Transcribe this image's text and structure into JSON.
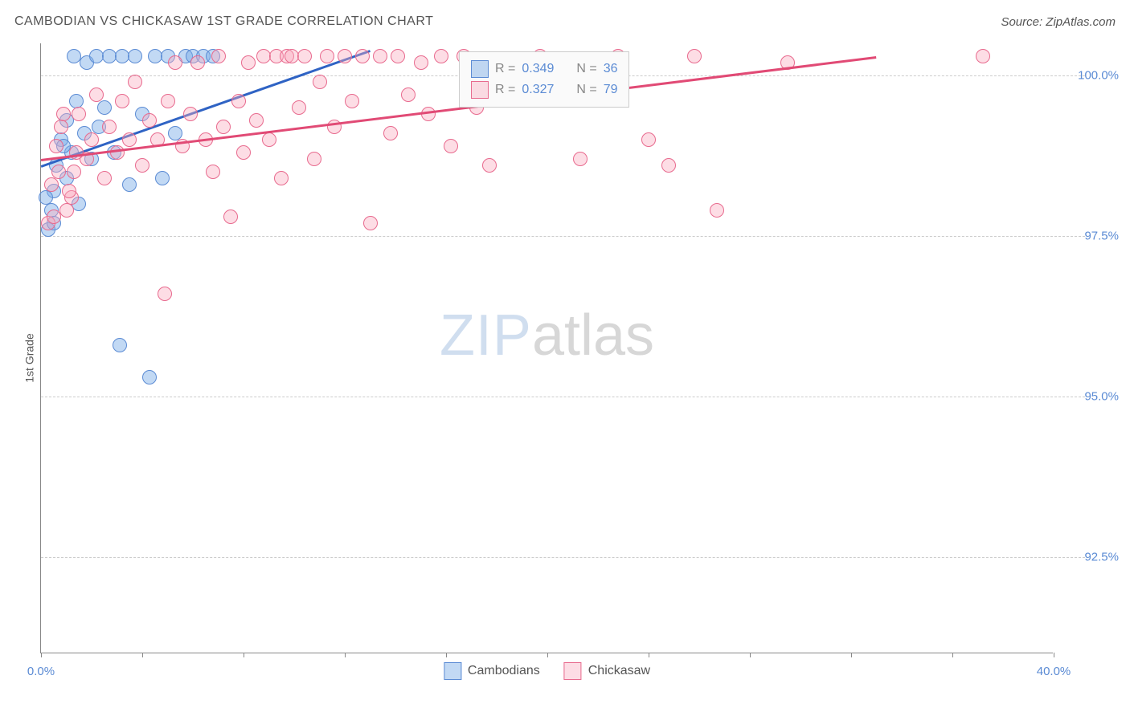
{
  "title": "CAMBODIAN VS CHICKASAW 1ST GRADE CORRELATION CHART",
  "source": "Source: ZipAtlas.com",
  "y_axis_label": "1st Grade",
  "watermark": {
    "part1": "ZIP",
    "part2": "atlas"
  },
  "chart": {
    "type": "scatter",
    "xlim": [
      0,
      40
    ],
    "ylim": [
      91,
      100.5
    ],
    "y_ticks": [
      {
        "value": 100.0,
        "label": "100.0%"
      },
      {
        "value": 97.5,
        "label": "97.5%"
      },
      {
        "value": 95.0,
        "label": "95.0%"
      },
      {
        "value": 92.5,
        "label": "92.5%"
      }
    ],
    "x_ticks": [
      {
        "value": 0,
        "label": "0.0%"
      },
      {
        "value": 4,
        "label": ""
      },
      {
        "value": 8,
        "label": ""
      },
      {
        "value": 12,
        "label": ""
      },
      {
        "value": 16,
        "label": ""
      },
      {
        "value": 20,
        "label": ""
      },
      {
        "value": 24,
        "label": ""
      },
      {
        "value": 28,
        "label": ""
      },
      {
        "value": 32,
        "label": ""
      },
      {
        "value": 36,
        "label": ""
      },
      {
        "value": 40,
        "label": "40.0%"
      }
    ],
    "grid_color": "#cccccc",
    "background_color": "#ffffff",
    "axis_color": "#888888",
    "series": [
      {
        "name": "Cambodians",
        "fill_color": "rgba(120, 170, 230, 0.45)",
        "stroke_color": "#5b8bd4",
        "marker_radius": 9,
        "trend": {
          "x1": 0,
          "y1": 98.6,
          "x2": 13,
          "y2": 100.4,
          "color": "#2f63c4"
        },
        "points": [
          {
            "x": 0.4,
            "y": 97.9
          },
          {
            "x": 0.5,
            "y": 98.2
          },
          {
            "x": 0.6,
            "y": 98.6
          },
          {
            "x": 0.8,
            "y": 99.0
          },
          {
            "x": 1.0,
            "y": 98.4
          },
          {
            "x": 1.0,
            "y": 99.3
          },
          {
            "x": 1.2,
            "y": 98.8
          },
          {
            "x": 1.4,
            "y": 99.6
          },
          {
            "x": 1.5,
            "y": 98.0
          },
          {
            "x": 1.7,
            "y": 99.1
          },
          {
            "x": 1.8,
            "y": 100.2
          },
          {
            "x": 2.0,
            "y": 98.7
          },
          {
            "x": 2.2,
            "y": 100.3
          },
          {
            "x": 2.3,
            "y": 99.2
          },
          {
            "x": 2.5,
            "y": 99.5
          },
          {
            "x": 2.7,
            "y": 100.3
          },
          {
            "x": 2.9,
            "y": 98.8
          },
          {
            "x": 3.1,
            "y": 95.8
          },
          {
            "x": 3.2,
            "y": 100.3
          },
          {
            "x": 3.5,
            "y": 98.3
          },
          {
            "x": 3.7,
            "y": 100.3
          },
          {
            "x": 4.0,
            "y": 99.4
          },
          {
            "x": 4.5,
            "y": 100.3
          },
          {
            "x": 4.8,
            "y": 98.4
          },
          {
            "x": 5.0,
            "y": 100.3
          },
          {
            "x": 5.3,
            "y": 99.1
          },
          {
            "x": 5.7,
            "y": 100.3
          },
          {
            "x": 6.0,
            "y": 100.3
          },
          {
            "x": 6.4,
            "y": 100.3
          },
          {
            "x": 6.8,
            "y": 100.3
          },
          {
            "x": 4.3,
            "y": 95.3
          },
          {
            "x": 0.3,
            "y": 97.6
          },
          {
            "x": 0.5,
            "y": 97.7
          },
          {
            "x": 0.2,
            "y": 98.1
          },
          {
            "x": 0.9,
            "y": 98.9
          },
          {
            "x": 1.3,
            "y": 100.3
          }
        ]
      },
      {
        "name": "Chickasaw",
        "fill_color": "rgba(250, 170, 190, 0.4)",
        "stroke_color": "#e86a8e",
        "marker_radius": 9,
        "trend": {
          "x1": 0,
          "y1": 98.7,
          "x2": 33,
          "y2": 100.3,
          "color": "#e14a75"
        },
        "points": [
          {
            "x": 0.4,
            "y": 98.3
          },
          {
            "x": 0.6,
            "y": 98.9
          },
          {
            "x": 0.8,
            "y": 99.2
          },
          {
            "x": 1.0,
            "y": 97.9
          },
          {
            "x": 1.2,
            "y": 98.1
          },
          {
            "x": 1.3,
            "y": 98.5
          },
          {
            "x": 1.5,
            "y": 99.4
          },
          {
            "x": 1.8,
            "y": 98.7
          },
          {
            "x": 2.0,
            "y": 99.0
          },
          {
            "x": 2.2,
            "y": 99.7
          },
          {
            "x": 2.5,
            "y": 98.4
          },
          {
            "x": 2.7,
            "y": 99.2
          },
          {
            "x": 3.0,
            "y": 98.8
          },
          {
            "x": 3.2,
            "y": 99.6
          },
          {
            "x": 3.5,
            "y": 99.0
          },
          {
            "x": 3.7,
            "y": 99.9
          },
          {
            "x": 4.0,
            "y": 98.6
          },
          {
            "x": 4.3,
            "y": 99.3
          },
          {
            "x": 4.6,
            "y": 99.0
          },
          {
            "x": 4.9,
            "y": 96.6
          },
          {
            "x": 5.0,
            "y": 99.6
          },
          {
            "x": 5.3,
            "y": 100.2
          },
          {
            "x": 5.6,
            "y": 98.9
          },
          {
            "x": 5.9,
            "y": 99.4
          },
          {
            "x": 6.2,
            "y": 100.2
          },
          {
            "x": 6.5,
            "y": 99.0
          },
          {
            "x": 6.8,
            "y": 98.5
          },
          {
            "x": 7.0,
            "y": 100.3
          },
          {
            "x": 7.2,
            "y": 99.2
          },
          {
            "x": 7.5,
            "y": 97.8
          },
          {
            "x": 7.8,
            "y": 99.6
          },
          {
            "x": 8.0,
            "y": 98.8
          },
          {
            "x": 8.2,
            "y": 100.2
          },
          {
            "x": 8.5,
            "y": 99.3
          },
          {
            "x": 8.8,
            "y": 100.3
          },
          {
            "x": 9.0,
            "y": 99.0
          },
          {
            "x": 9.3,
            "y": 100.3
          },
          {
            "x": 9.5,
            "y": 98.4
          },
          {
            "x": 9.7,
            "y": 100.3
          },
          {
            "x": 9.9,
            "y": 100.3
          },
          {
            "x": 10.2,
            "y": 99.5
          },
          {
            "x": 10.4,
            "y": 100.3
          },
          {
            "x": 10.8,
            "y": 98.7
          },
          {
            "x": 11.0,
            "y": 99.9
          },
          {
            "x": 11.3,
            "y": 100.3
          },
          {
            "x": 11.6,
            "y": 99.2
          },
          {
            "x": 12.0,
            "y": 100.3
          },
          {
            "x": 12.3,
            "y": 99.6
          },
          {
            "x": 12.7,
            "y": 100.3
          },
          {
            "x": 13.0,
            "y": 97.7
          },
          {
            "x": 13.4,
            "y": 100.3
          },
          {
            "x": 13.8,
            "y": 99.1
          },
          {
            "x": 14.1,
            "y": 100.3
          },
          {
            "x": 14.5,
            "y": 99.7
          },
          {
            "x": 15.0,
            "y": 100.2
          },
          {
            "x": 15.3,
            "y": 99.4
          },
          {
            "x": 15.8,
            "y": 100.3
          },
          {
            "x": 16.2,
            "y": 98.9
          },
          {
            "x": 16.7,
            "y": 100.3
          },
          {
            "x": 17.2,
            "y": 99.5
          },
          {
            "x": 17.7,
            "y": 98.6
          },
          {
            "x": 18.2,
            "y": 100.2
          },
          {
            "x": 19.0,
            "y": 99.9
          },
          {
            "x": 19.7,
            "y": 100.3
          },
          {
            "x": 20.5,
            "y": 100.2
          },
          {
            "x": 21.3,
            "y": 98.7
          },
          {
            "x": 22.8,
            "y": 100.3
          },
          {
            "x": 24.0,
            "y": 99.0
          },
          {
            "x": 24.8,
            "y": 98.6
          },
          {
            "x": 25.8,
            "y": 100.3
          },
          {
            "x": 26.7,
            "y": 97.9
          },
          {
            "x": 29.5,
            "y": 100.2
          },
          {
            "x": 37.2,
            "y": 100.3
          },
          {
            "x": 0.3,
            "y": 97.7
          },
          {
            "x": 0.5,
            "y": 97.8
          },
          {
            "x": 0.7,
            "y": 98.5
          },
          {
            "x": 0.9,
            "y": 99.4
          },
          {
            "x": 1.1,
            "y": 98.2
          },
          {
            "x": 1.4,
            "y": 98.8
          }
        ]
      }
    ]
  },
  "stat_legend": {
    "rows": [
      {
        "swatch_fill": "rgba(120, 170, 230, 0.45)",
        "swatch_border": "#5b8bd4",
        "r_label": "R =",
        "r_value": "0.349",
        "n_label": "N =",
        "n_value": "36"
      },
      {
        "swatch_fill": "rgba(250, 170, 190, 0.4)",
        "swatch_border": "#e86a8e",
        "r_label": "R =",
        "r_value": "0.327",
        "n_label": "N =",
        "n_value": "79"
      }
    ]
  },
  "bottom_legend": {
    "items": [
      {
        "label": "Cambodians",
        "fill": "rgba(120, 170, 230, 0.45)",
        "border": "#5b8bd4"
      },
      {
        "label": "Chickasaw",
        "fill": "rgba(250, 170, 190, 0.4)",
        "border": "#e86a8e"
      }
    ]
  }
}
